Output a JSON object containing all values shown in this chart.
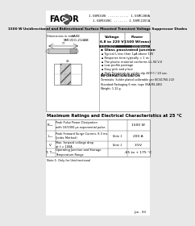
{
  "page_bg": "#e8e8e8",
  "content_bg": "#ffffff",
  "logo_text": "FAGOR",
  "part_numbers_right": [
    "1.5SMC6V8 ........... 1.5SMC200A",
    "1.5SMC6V8C ....... 1.5SMC220CA"
  ],
  "title_bar_text": "1500 W Unidirectional and Bidirectional Surface Mounted Transient Voltage Suppressor Diodes",
  "section1_title": "Dimensions in mm",
  "case_label": "CASE\nSMC/DO-214AB",
  "voltage_label": "Voltage\n6.8 to 220 V",
  "power_label": "Power\n1500 W(max)",
  "features_title": "Glass passivated junction",
  "features": [
    "Typical Iₙ less than 1μA above 10V",
    "Response time typically < 1 ns",
    "The plastic material conforms UL-94 V-0",
    "Low profile package",
    "Easy pick and place",
    "High Temperature solder dip 260°C / 20 sec."
  ],
  "info_title": "INFORMATION/DATOS",
  "info_text": "Terminals: Solder plated solderable per IEC61760-2(2)\nStandard Packaging 6 mm. tape (EIA-RS-481)\nWeight: 1.12 g.",
  "table_title": "Maximum Ratings and Electrical Characteristics at 25 °C",
  "rows": [
    {
      "symbol": "Pₚₚₚ",
      "description": "Peak Pulse Power Dissipation\nwith 10/1000 μs exponential pulse",
      "note": "",
      "value": "1500 W"
    },
    {
      "symbol": "Iₚₚₚ",
      "description": "Peak Forward Surge Current, 8.3 ms.\n(Jedec Method)",
      "note": "Note 1",
      "value": "200 A"
    },
    {
      "symbol": "Vⁱ",
      "description": "Max. forward voltage drop\nat Iⁱ = 100A",
      "note": "Note 1",
      "value": "3.5V"
    },
    {
      "symbol": "Tⱼ, Tₚₜₛ",
      "description": "Operating Junction and Storage\nTemperature Range",
      "note": "",
      "value": "-65 to + 175 °C"
    }
  ],
  "note1_text": "Note 1: Only for Unidirectional",
  "page_ref": "Jun - 93"
}
